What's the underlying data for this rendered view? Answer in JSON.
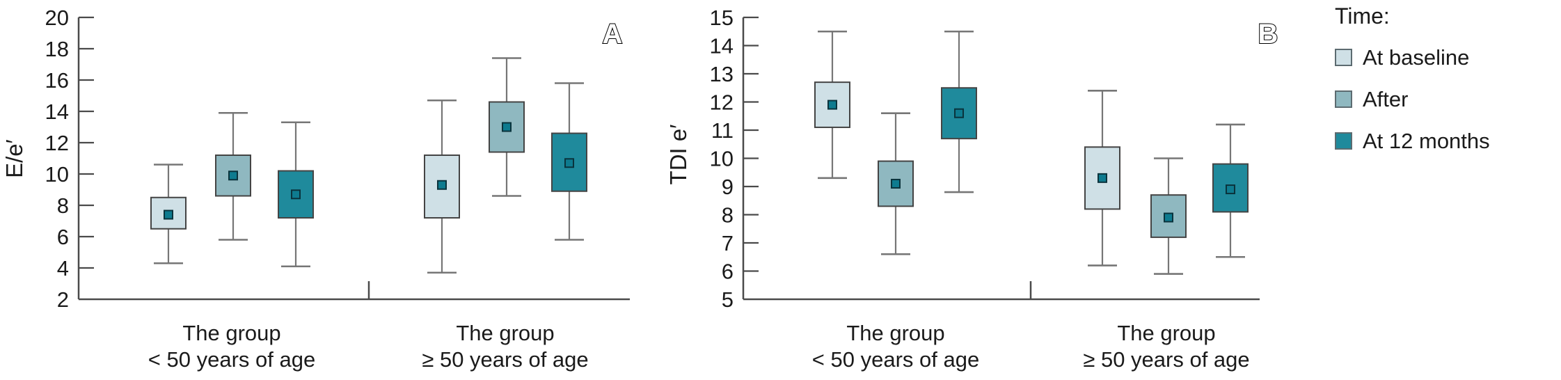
{
  "figure": {
    "legend": {
      "title": "Time:",
      "items": [
        {
          "label": "At baseline",
          "color": "#cfe0e6"
        },
        {
          "label": "After",
          "color": "#8fb8c0"
        },
        {
          "label": "At 12 months",
          "color": "#1f8a9c"
        }
      ]
    },
    "colors": {
      "axis": "#4a4a4a",
      "text": "#1a1a1a",
      "box_stroke": "#444444",
      "whisker": "#767676",
      "marker_fill": "#0e7b8f",
      "marker_stroke": "#0a333c"
    }
  },
  "chart_data": [
    {
      "type": "box",
      "panel_label": "A",
      "ylabel": "E/e′",
      "ylim": [
        2,
        20
      ],
      "yticks": [
        2,
        4,
        6,
        8,
        10,
        12,
        14,
        16,
        18,
        20
      ],
      "grid": false,
      "categories": [
        [
          "The group",
          "< 50 years of age"
        ],
        [
          "The group",
          "≥ 50 years of age"
        ]
      ],
      "series": [
        {
          "name": "At baseline",
          "color": "#cfe0e6",
          "values": [
            {
              "low": 4.3,
              "q1": 6.5,
              "mean": 7.4,
              "q3": 8.5,
              "high": 10.6
            },
            {
              "low": 3.7,
              "q1": 7.2,
              "mean": 9.3,
              "q3": 11.2,
              "high": 14.7
            }
          ]
        },
        {
          "name": "After",
          "color": "#8fb8c0",
          "values": [
            {
              "low": 5.8,
              "q1": 8.6,
              "mean": 9.9,
              "q3": 11.2,
              "high": 13.9
            },
            {
              "low": 8.6,
              "q1": 11.4,
              "mean": 13.0,
              "q3": 14.6,
              "high": 17.4
            }
          ]
        },
        {
          "name": "At 12 months",
          "color": "#1f8a9c",
          "values": [
            {
              "low": 4.1,
              "q1": 7.2,
              "mean": 8.7,
              "q3": 10.2,
              "high": 13.3
            },
            {
              "low": 5.8,
              "q1": 8.9,
              "mean": 10.7,
              "q3": 12.6,
              "high": 15.8
            }
          ]
        }
      ]
    },
    {
      "type": "box",
      "panel_label": "B",
      "ylabel": "TDI e′",
      "ylim": [
        5,
        15
      ],
      "yticks": [
        5,
        6,
        7,
        8,
        9,
        10,
        11,
        12,
        13,
        14,
        15
      ],
      "grid": false,
      "categories": [
        [
          "The group",
          "< 50 years of age"
        ],
        [
          "The group",
          "≥ 50 years of age"
        ]
      ],
      "series": [
        {
          "name": "At baseline",
          "color": "#cfe0e6",
          "values": [
            {
              "low": 9.3,
              "q1": 11.1,
              "mean": 11.9,
              "q3": 12.7,
              "high": 14.5
            },
            {
              "low": 6.2,
              "q1": 8.2,
              "mean": 9.3,
              "q3": 10.4,
              "high": 12.4
            }
          ]
        },
        {
          "name": "After",
          "color": "#8fb8c0",
          "values": [
            {
              "low": 6.6,
              "q1": 8.3,
              "mean": 9.1,
              "q3": 9.9,
              "high": 11.6
            },
            {
              "low": 5.9,
              "q1": 7.2,
              "mean": 7.9,
              "q3": 8.7,
              "high": 10.0
            }
          ]
        },
        {
          "name": "At 12 months",
          "color": "#1f8a9c",
          "values": [
            {
              "low": 8.8,
              "q1": 10.7,
              "mean": 11.6,
              "q3": 12.5,
              "high": 14.5
            },
            {
              "low": 6.5,
              "q1": 8.1,
              "mean": 8.9,
              "q3": 9.8,
              "high": 11.2
            }
          ]
        }
      ]
    }
  ]
}
